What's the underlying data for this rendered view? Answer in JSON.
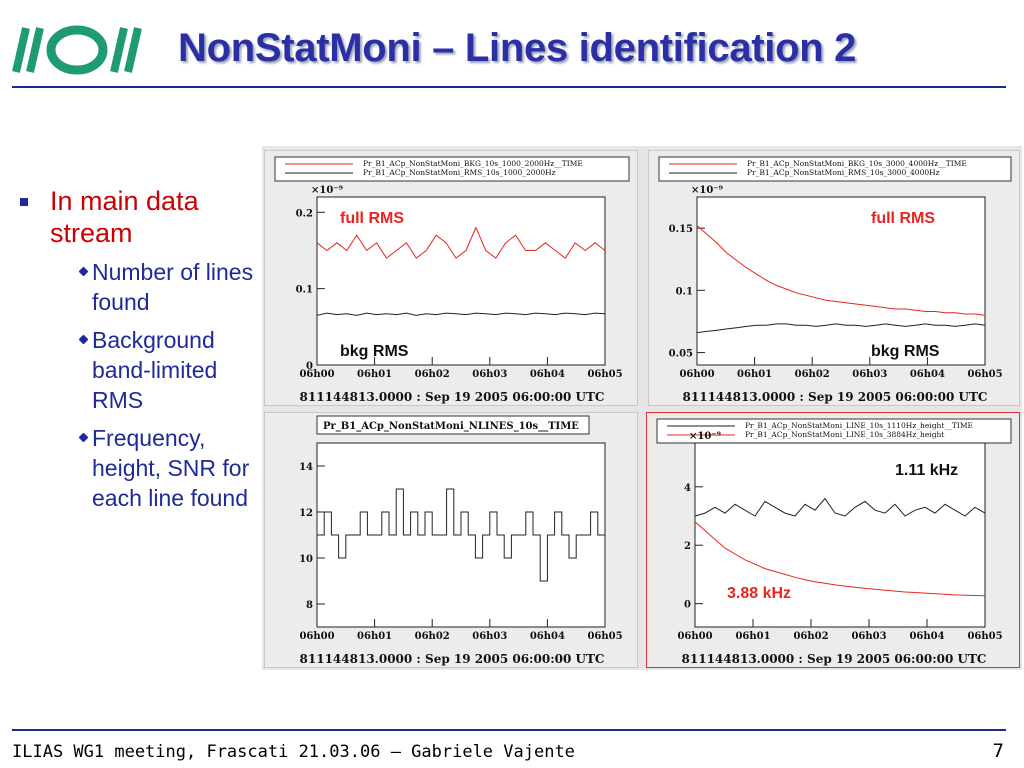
{
  "slide": {
    "title": "NonStatMoni – Lines identification 2",
    "footer": "ILIAS WG1 meeting, Frascati 21.03.06 – Gabriele Vajente",
    "page_number": "7"
  },
  "logo": {
    "icon": "ilias-logo",
    "color": "#1e9a75"
  },
  "bullets": {
    "main": "In main data stream",
    "subs": [
      "Number of lines found",
      "Background band-limited RMS",
      "Frequency, height, SNR for each line found"
    ]
  },
  "colors": {
    "title": "#2b2fa6",
    "bullet_main": "#cc0000",
    "bullet_sub": "#1f2a98",
    "series_red": "#e8251e",
    "series_black": "#222222"
  },
  "chart_data": [
    {
      "type": "line",
      "legend": [
        "Pr_B1_ACp_NonStatMoni_BKG_10s_1000_2000Hz__TIME",
        "Pr_B1_ACp_NonStatMoni_RMS_10s_1000_2000Hz"
      ],
      "exponent": "×10⁻⁹",
      "x_ticks": [
        "06h00",
        "06h01",
        "06h02",
        "06h03",
        "06h04",
        "06h05"
      ],
      "y_ticks": [
        "0",
        "0.1",
        "0.2"
      ],
      "ylim": [
        0,
        0.22
      ],
      "series": [
        {
          "name": "full RMS",
          "color": "#e8251e",
          "values": [
            0.16,
            0.15,
            0.16,
            0.15,
            0.17,
            0.15,
            0.16,
            0.14,
            0.15,
            0.16,
            0.14,
            0.15,
            0.17,
            0.16,
            0.14,
            0.15,
            0.18,
            0.15,
            0.14,
            0.16,
            0.17,
            0.15,
            0.15,
            0.16,
            0.15,
            0.14,
            0.16,
            0.15,
            0.16,
            0.15
          ]
        },
        {
          "name": "bkg RMS",
          "color": "#222222",
          "values": [
            0.065,
            0.068,
            0.066,
            0.067,
            0.065,
            0.068,
            0.066,
            0.067,
            0.066,
            0.068,
            0.065,
            0.067,
            0.066,
            0.068,
            0.067,
            0.066,
            0.068,
            0.067,
            0.066,
            0.068,
            0.067,
            0.066,
            0.068,
            0.067,
            0.066,
            0.068,
            0.067,
            0.066,
            0.068,
            0.067
          ]
        }
      ],
      "annotations": [
        "full RMS",
        "bkg RMS"
      ],
      "stamp": "811144813.0000 : Sep 19 2005 06:00:00 UTC"
    },
    {
      "type": "line",
      "legend": [
        "Pr_B1_ACp_NonStatMoni_BKG_10s_3000_4000Hz__TIME",
        "Pr_B1_ACp_NonStatMoni_RMS_10s_3000_4000Hz"
      ],
      "exponent": "×10⁻⁹",
      "x_ticks": [
        "06h00",
        "06h01",
        "06h02",
        "06h03",
        "06h04",
        "06h05"
      ],
      "y_ticks": [
        "0.05",
        "0.1",
        "0.15"
      ],
      "ylim": [
        0.04,
        0.175
      ],
      "series": [
        {
          "name": "full RMS",
          "color": "#e8251e",
          "values": [
            0.152,
            0.145,
            0.138,
            0.13,
            0.124,
            0.118,
            0.113,
            0.108,
            0.104,
            0.101,
            0.098,
            0.096,
            0.094,
            0.092,
            0.091,
            0.09,
            0.089,
            0.088,
            0.087,
            0.086,
            0.085,
            0.085,
            0.084,
            0.083,
            0.083,
            0.082,
            0.082,
            0.081,
            0.081,
            0.08
          ]
        },
        {
          "name": "bkg RMS",
          "color": "#222222",
          "values": [
            0.066,
            0.067,
            0.068,
            0.069,
            0.07,
            0.071,
            0.072,
            0.072,
            0.073,
            0.073,
            0.072,
            0.072,
            0.071,
            0.072,
            0.073,
            0.072,
            0.072,
            0.071,
            0.072,
            0.073,
            0.072,
            0.071,
            0.072,
            0.073,
            0.072,
            0.072,
            0.071,
            0.072,
            0.073,
            0.072
          ]
        }
      ],
      "annotations": [
        "full RMS",
        "bkg RMS"
      ],
      "stamp": "811144813.0000 : Sep 19 2005 06:00:00 UTC"
    },
    {
      "type": "line",
      "title": "Pr_B1_ACp_NonStatMoni_NLINES_10s__TIME",
      "x_ticks": [
        "06h00",
        "06h01",
        "06h02",
        "06h03",
        "06h04",
        "06h05"
      ],
      "y_ticks": [
        "8",
        "10",
        "12",
        "14"
      ],
      "ylim": [
        7,
        15
      ],
      "series": [
        {
          "name": "NLINES",
          "color": "#222222",
          "values": [
            11,
            12,
            11,
            10,
            11,
            11,
            12,
            11,
            11,
            12,
            11,
            13,
            11,
            12,
            11,
            12,
            11,
            11,
            13,
            11,
            12,
            11,
            10,
            11,
            12,
            11,
            10,
            11,
            11,
            12,
            11,
            9,
            11,
            12,
            11,
            10,
            11,
            11,
            12,
            11
          ]
        }
      ],
      "stamp": "811144813.0000 : Sep 19 2005 06:00:00 UTC"
    },
    {
      "type": "line",
      "legend": [
        "Pr_B1_ACp_NonStatMoni_LINE_10s_1110Hz_height__TIME",
        "Pr_B1_ACp_NonStatMoni_LINE_10s_3884Hz_height"
      ],
      "exponent": "×10⁻⁹",
      "x_ticks": [
        "06h00",
        "06h01",
        "06h02",
        "06h03",
        "06h04",
        "06h05"
      ],
      "y_ticks": [
        "0",
        "2",
        "4"
      ],
      "ylim": [
        -0.8,
        5.5
      ],
      "series": [
        {
          "name": "1.11 kHz",
          "color": "#222222",
          "values": [
            3.0,
            3.1,
            3.3,
            3.1,
            3.4,
            3.2,
            3.0,
            3.5,
            3.3,
            3.1,
            3.0,
            3.4,
            3.2,
            3.6,
            3.1,
            3.0,
            3.3,
            3.5,
            3.2,
            3.1,
            3.4,
            3.0,
            3.2,
            3.3,
            3.1,
            3.4,
            3.2,
            3.0,
            3.3,
            3.1
          ]
        },
        {
          "name": "3.88 kHz",
          "color": "#e8251e",
          "values": [
            2.8,
            2.5,
            2.2,
            1.9,
            1.7,
            1.5,
            1.35,
            1.2,
            1.1,
            1.0,
            0.9,
            0.82,
            0.75,
            0.7,
            0.64,
            0.6,
            0.56,
            0.52,
            0.49,
            0.46,
            0.43,
            0.4,
            0.38,
            0.36,
            0.34,
            0.32,
            0.3,
            0.29,
            0.28,
            0.27
          ]
        }
      ],
      "annotations": [
        "1.11 kHz",
        "3.88 kHz"
      ],
      "stamp": "811144813.0000 : Sep 19 2005 06:00:00 UTC"
    }
  ]
}
